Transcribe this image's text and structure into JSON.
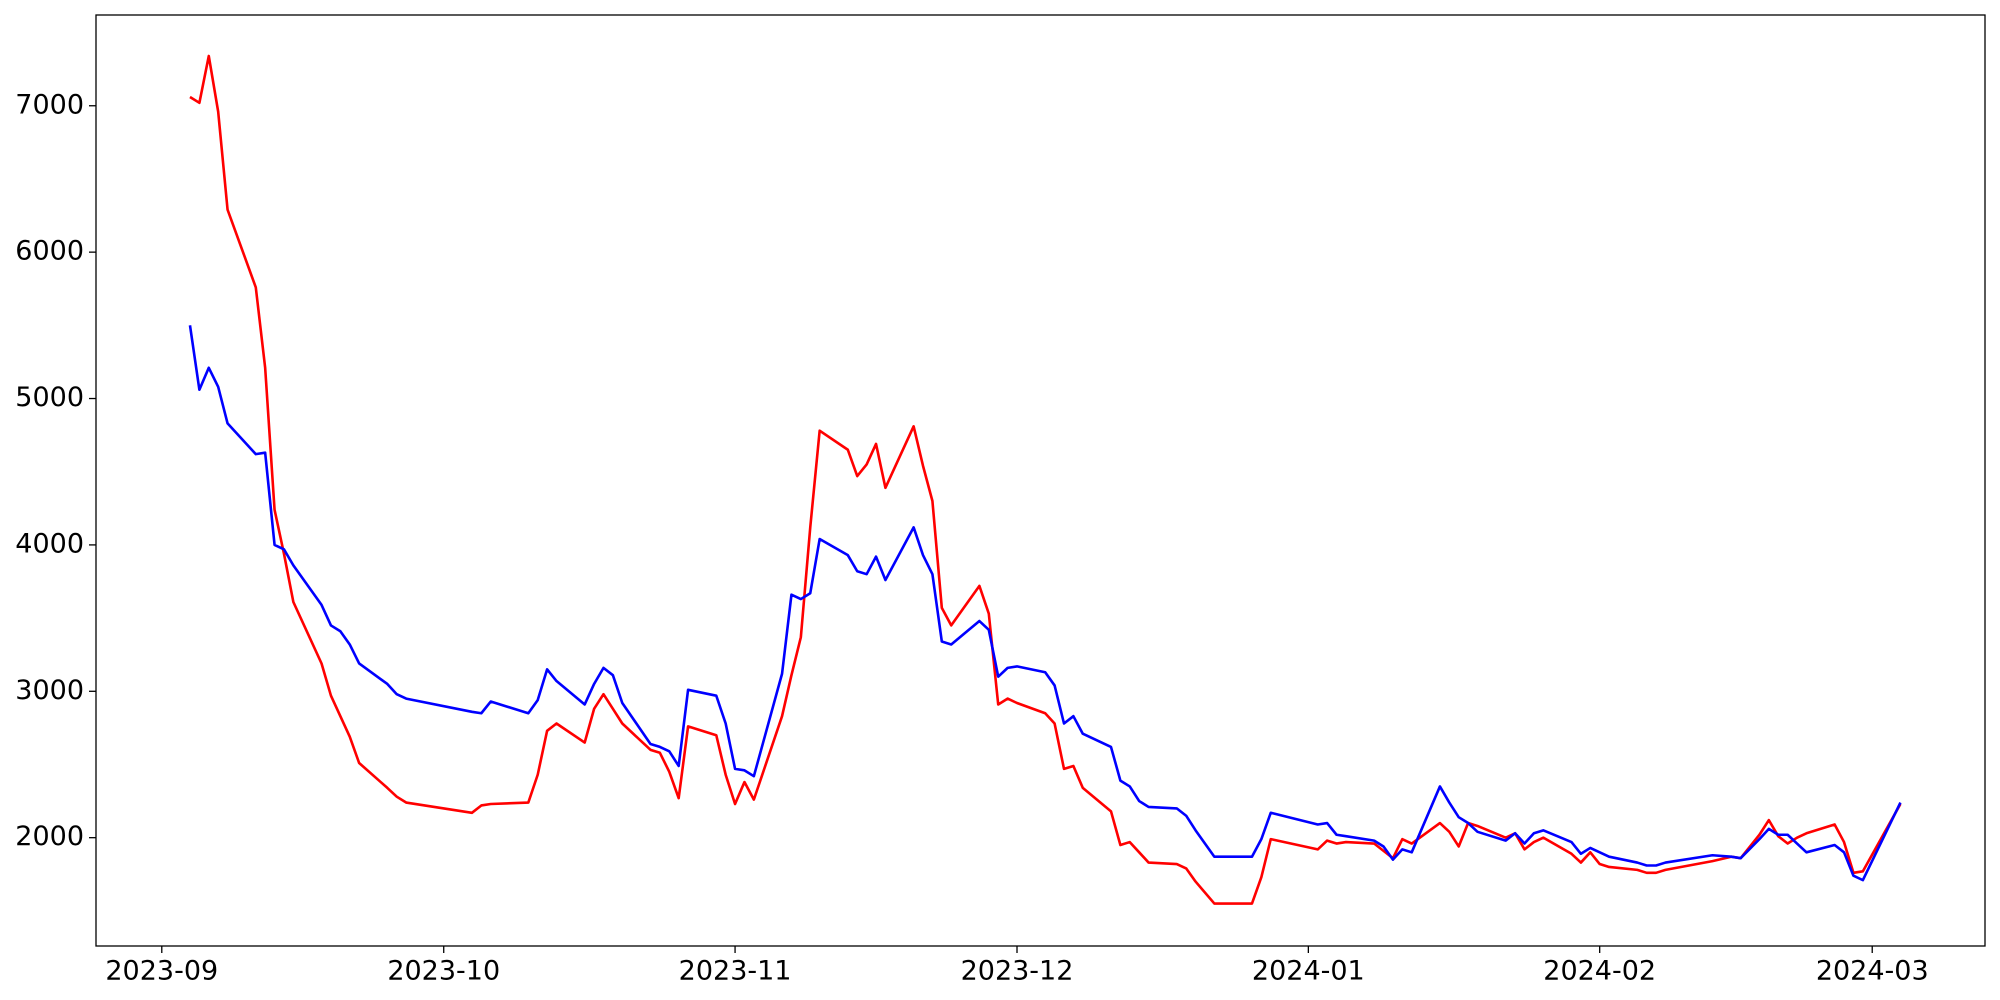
{
  "chart_data": {
    "type": "line",
    "x": [
      "2023-09-04",
      "2023-09-05",
      "2023-09-06",
      "2023-09-07",
      "2023-09-08",
      "2023-09-11",
      "2023-09-12",
      "2023-09-13",
      "2023-09-14",
      "2023-09-15",
      "2023-09-18",
      "2023-09-19",
      "2023-09-20",
      "2023-09-21",
      "2023-09-22",
      "2023-09-25",
      "2023-09-26",
      "2023-09-27",
      "2023-10-04",
      "2023-10-05",
      "2023-10-06",
      "2023-10-10",
      "2023-10-11",
      "2023-10-12",
      "2023-10-13",
      "2023-10-16",
      "2023-10-17",
      "2023-10-18",
      "2023-10-19",
      "2023-10-20",
      "2023-10-23",
      "2023-10-24",
      "2023-10-25",
      "2023-10-26",
      "2023-10-27",
      "2023-10-30",
      "2023-10-31",
      "2023-11-01",
      "2023-11-02",
      "2023-11-03",
      "2023-11-06",
      "2023-11-07",
      "2023-11-08",
      "2023-11-09",
      "2023-11-10",
      "2023-11-13",
      "2023-11-14",
      "2023-11-15",
      "2023-11-16",
      "2023-11-17",
      "2023-11-20",
      "2023-11-21",
      "2023-11-22",
      "2023-11-23",
      "2023-11-24",
      "2023-11-27",
      "2023-11-28",
      "2023-11-29",
      "2023-11-30",
      "2023-12-01",
      "2023-12-04",
      "2023-12-05",
      "2023-12-06",
      "2023-12-07",
      "2023-12-08",
      "2023-12-11",
      "2023-12-12",
      "2023-12-13",
      "2023-12-14",
      "2023-12-15",
      "2023-12-18",
      "2023-12-19",
      "2023-12-20",
      "2023-12-22",
      "2023-12-26",
      "2023-12-27",
      "2023-12-28",
      "2024-01-02",
      "2024-01-03",
      "2024-01-04",
      "2024-01-05",
      "2024-01-08",
      "2024-01-09",
      "2024-01-10",
      "2024-01-11",
      "2024-01-12",
      "2024-01-15",
      "2024-01-16",
      "2024-01-17",
      "2024-01-18",
      "2024-01-19",
      "2024-01-22",
      "2024-01-23",
      "2024-01-24",
      "2024-01-25",
      "2024-01-26",
      "2024-01-29",
      "2024-01-30",
      "2024-01-31",
      "2024-02-01",
      "2024-02-02",
      "2024-02-05",
      "2024-02-06",
      "2024-02-07",
      "2024-02-08",
      "2024-02-13",
      "2024-02-15",
      "2024-02-16",
      "2024-02-18",
      "2024-02-19",
      "2024-02-20",
      "2024-02-21",
      "2024-02-22",
      "2024-02-23",
      "2024-02-26",
      "2024-02-27",
      "2024-02-28",
      "2024-02-29",
      "2024-03-04"
    ],
    "series": [
      {
        "color": "#ff0000",
        "values": [
          7060,
          7020,
          7340,
          6960,
          6290,
          5760,
          5210,
          4240,
          3940,
          3610,
          3190,
          2970,
          2830,
          2690,
          2510,
          2340,
          2280,
          2240,
          2170,
          2220,
          2230,
          2240,
          2430,
          2730,
          2780,
          2650,
          2880,
          2980,
          2880,
          2780,
          2600,
          2580,
          2450,
          2270,
          2760,
          2700,
          2430,
          2230,
          2380,
          2260,
          2830,
          3110,
          3370,
          4120,
          4780,
          4650,
          4470,
          4550,
          4690,
          4390,
          4810,
          4540,
          4300,
          3570,
          3450,
          3720,
          3530,
          2910,
          2950,
          2920,
          2850,
          2780,
          2470,
          2490,
          2340,
          2180,
          1950,
          1970,
          1900,
          1830,
          1820,
          1790,
          1700,
          1550,
          1550,
          1730,
          1990,
          1920,
          1980,
          1960,
          1970,
          1960,
          1910,
          1860,
          1990,
          1960,
          2100,
          2040,
          1940,
          2100,
          2080,
          2000,
          2030,
          1920,
          1970,
          2000,
          1890,
          1830,
          1900,
          1820,
          1800,
          1780,
          1760,
          1760,
          1780,
          1840,
          1870,
          1860,
          2020,
          2120,
          2010,
          1960,
          2000,
          2030,
          2090,
          1970,
          1760,
          1770,
          2230
        ]
      },
      {
        "color": "#0000ff",
        "values": [
          5500,
          5060,
          5210,
          5080,
          4830,
          4620,
          4630,
          4000,
          3970,
          3860,
          3590,
          3450,
          3410,
          3320,
          3190,
          3050,
          2980,
          2950,
          2860,
          2850,
          2930,
          2850,
          2940,
          3150,
          3070,
          2910,
          3050,
          3160,
          3110,
          2920,
          2640,
          2620,
          2590,
          2490,
          3010,
          2970,
          2780,
          2470,
          2460,
          2420,
          3120,
          3660,
          3630,
          3670,
          4040,
          3930,
          3820,
          3800,
          3920,
          3760,
          4120,
          3930,
          3800,
          3340,
          3320,
          3480,
          3420,
          3100,
          3160,
          3170,
          3130,
          3040,
          2780,
          2830,
          2710,
          2620,
          2390,
          2350,
          2250,
          2210,
          2200,
          2150,
          2050,
          1870,
          1870,
          1990,
          2170,
          2090,
          2100,
          2020,
          2010,
          1980,
          1940,
          1850,
          1920,
          1900,
          2350,
          2240,
          2140,
          2100,
          2040,
          1980,
          2030,
          1960,
          2030,
          2050,
          1970,
          1890,
          1930,
          1900,
          1870,
          1830,
          1810,
          1810,
          1830,
          1880,
          1870,
          1860,
          1990,
          2060,
          2020,
          2020,
          1960,
          1900,
          1950,
          1900,
          1740,
          1710,
          2240
        ]
      }
    ],
    "xlim": [
      "2023-08-25",
      "2024-03-13"
    ],
    "xticks": [
      {
        "value": "2023-09-01",
        "label": "2023-09"
      },
      {
        "value": "2023-10-01",
        "label": "2023-10"
      },
      {
        "value": "2023-11-01",
        "label": "2023-11"
      },
      {
        "value": "2023-12-01",
        "label": "2023-12"
      },
      {
        "value": "2024-01-01",
        "label": "2024-01"
      },
      {
        "value": "2024-02-01",
        "label": "2024-02"
      },
      {
        "value": "2024-03-01",
        "label": "2024-03"
      }
    ],
    "ylim": [
      1260,
      7620
    ],
    "yticks": [
      2000,
      3000,
      4000,
      5000,
      6000,
      7000
    ],
    "grid": false
  }
}
